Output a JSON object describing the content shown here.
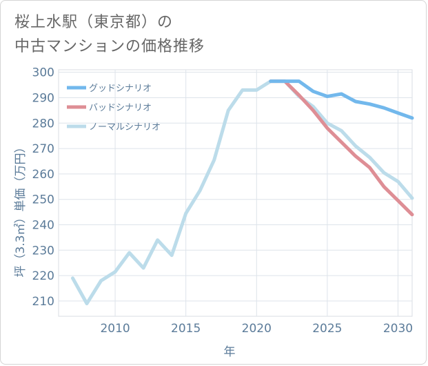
{
  "title_line1": "桜上水駅（東京都）の",
  "title_line2": "中古マンションの価格推移",
  "chart_data": {
    "type": "line",
    "xlabel": "年",
    "ylabel": "坪（3.3㎡）単価（万円）",
    "xlim": [
      2006,
      2031
    ],
    "ylim": [
      204,
      301
    ],
    "xticks": [
      2010,
      2015,
      2020,
      2025,
      2030
    ],
    "yticks": [
      210,
      220,
      230,
      240,
      250,
      260,
      270,
      280,
      290,
      300
    ],
    "legend_position": "top-left",
    "series": [
      {
        "name": "グッドシナリオ",
        "color": "#72b8ec",
        "x": [
          2021,
          2022,
          2023,
          2024,
          2025,
          2026,
          2027,
          2028,
          2029,
          2030,
          2031
        ],
        "y": [
          296.5,
          296.5,
          296.5,
          292.5,
          290.5,
          291.5,
          288.5,
          287.5,
          286,
          284,
          282
        ]
      },
      {
        "name": "バッドシナリオ",
        "color": "#de8e95",
        "x": [
          2021,
          2022,
          2023,
          2024,
          2025,
          2026,
          2027,
          2028,
          2029,
          2030,
          2031
        ],
        "y": [
          296.5,
          296.5,
          291,
          285,
          278,
          272.5,
          267,
          262.5,
          255,
          249.5,
          244
        ]
      },
      {
        "name": "ノーマルシナリオ",
        "color": "#bcdcea",
        "x": [
          2007,
          2008,
          2009,
          2010,
          2011,
          2012,
          2013,
          2014,
          2015,
          2016,
          2017,
          2018,
          2019,
          2020,
          2021,
          2022,
          2023,
          2024,
          2025,
          2026,
          2027,
          2028,
          2029,
          2030,
          2031
        ],
        "y": [
          219,
          209,
          218,
          221.5,
          229,
          223,
          234,
          228,
          244.5,
          253.5,
          265.5,
          285,
          293,
          293,
          296.5,
          296.5,
          290.5,
          286.5,
          280,
          277,
          271,
          266.5,
          260.5,
          257,
          250.5
        ]
      }
    ]
  }
}
